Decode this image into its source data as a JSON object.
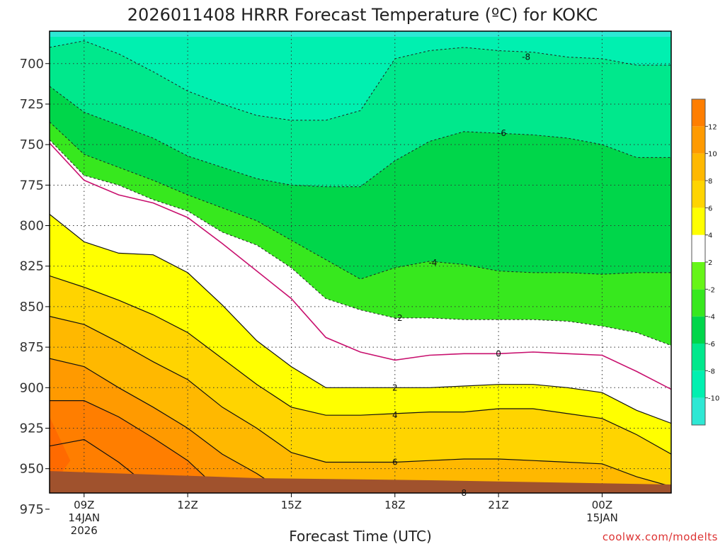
{
  "chart_data": {
    "type": "contour",
    "title": "2026011408 HRRR Forecast Temperature (ºC) for KOKC",
    "xlabel": "Forecast Time (UTC)",
    "ylabel": "",
    "credit": "coolwx.com/modelts",
    "y_scale": "pressure (hPa, increasing downward)",
    "ylim": [
      965,
      680
    ],
    "y_ticks": [
      700,
      725,
      750,
      775,
      800,
      825,
      850,
      875,
      900,
      925,
      950,
      975
    ],
    "x_hours": [
      8,
      26
    ],
    "x_ticks": [
      {
        "hour": 9,
        "lines": [
          "09Z",
          "14JAN",
          "2026"
        ]
      },
      {
        "hour": 12,
        "lines": [
          "12Z"
        ]
      },
      {
        "hour": 15,
        "lines": [
          "15Z"
        ]
      },
      {
        "hour": 18,
        "lines": [
          "18Z"
        ]
      },
      {
        "hour": 21,
        "lines": [
          "21Z"
        ]
      },
      {
        "hour": 24,
        "lines": [
          "00Z",
          "15JAN"
        ]
      }
    ],
    "grid": true,
    "colorbar": {
      "position": "right",
      "levels": [
        -12,
        -10,
        -8,
        -6,
        -4,
        -2,
        2,
        4,
        6,
        8,
        10,
        12,
        14
      ],
      "labels": [
        "-10",
        "-8",
        "-6",
        "-4",
        "-2",
        "2",
        "4",
        "6",
        "8",
        "10",
        "12"
      ],
      "colors": [
        "#2ee8d4",
        "#00f0b0",
        "#00e88c",
        "#00d64a",
        "#37e81e",
        "#66f518",
        "#ffffff",
        "#ffff00",
        "#ffd400",
        "#ffb800",
        "#ff9a00",
        "#ff7e00"
      ]
    },
    "ground_color": "#a0522d",
    "field_columns": [
      {
        "hour": 8,
        "isotherm_levels": {
          "-8": 690,
          "-6": 714,
          "-4": 736,
          "-2": 747,
          "0": 749,
          "2": 793,
          "4": 831,
          "6": 856,
          "8": 882,
          "10": 908,
          "12": 936,
          "14": 963
        }
      },
      {
        "hour": 9,
        "isotherm_levels": {
          "-8": 686,
          "-6": 730,
          "-4": 756,
          "-2": 769,
          "0": 772,
          "2": 810,
          "4": 838,
          "6": 861,
          "8": 887,
          "10": 908,
          "12": 932,
          "14": 990
        }
      },
      {
        "hour": 10,
        "isotherm_levels": {
          "-8": 694,
          "-6": 738,
          "-4": 764,
          "-2": 775,
          "0": 781,
          "2": 817,
          "4": 846,
          "6": 872,
          "8": 900,
          "10": 918,
          "12": 946,
          "14": 990
        }
      },
      {
        "hour": 11,
        "isotherm_levels": {
          "-8": 705,
          "-6": 746,
          "-4": 772,
          "-2": 784,
          "0": 786,
          "2": 818,
          "4": 855,
          "6": 884,
          "8": 912,
          "10": 931,
          "12": 963,
          "14": 990
        }
      },
      {
        "hour": 12,
        "isotherm_levels": {
          "-8": 717,
          "-6": 757,
          "-4": 781,
          "-2": 791,
          "0": 795,
          "2": 829,
          "4": 866,
          "6": 895,
          "8": 925,
          "10": 945,
          "12": 990,
          "14": 990
        }
      },
      {
        "hour": 13,
        "isotherm_levels": {
          "-8": 725,
          "-6": 764,
          "-4": 789,
          "-2": 804,
          "0": 811,
          "2": 849,
          "4": 882,
          "6": 912,
          "8": 941,
          "10": 965,
          "12": 990,
          "14": 990
        }
      },
      {
        "hour": 14,
        "isotherm_levels": {
          "-8": 732,
          "-6": 771,
          "-4": 797,
          "-2": 812,
          "0": 828,
          "2": 871,
          "4": 898,
          "6": 925,
          "8": 953,
          "10": 990,
          "12": 990,
          "14": 990
        }
      },
      {
        "hour": 15,
        "isotherm_levels": {
          "-8": 735,
          "-6": 775,
          "-4": 809,
          "-2": 826,
          "0": 845,
          "2": 887,
          "4": 912,
          "6": 940,
          "8": 967,
          "10": 990,
          "12": 990,
          "14": 990
        }
      },
      {
        "hour": 16,
        "isotherm_levels": {
          "-8": 735,
          "-6": 776,
          "-4": 821,
          "-2": 845,
          "0": 869,
          "2": 900,
          "4": 917,
          "6": 946,
          "8": 968,
          "10": 990,
          "12": 990,
          "14": 990
        }
      },
      {
        "hour": 17,
        "isotherm_levels": {
          "-8": 729,
          "-6": 776,
          "-4": 833,
          "-2": 852,
          "0": 878,
          "2": 900,
          "4": 917,
          "6": 946,
          "8": 968,
          "10": 990,
          "12": 990,
          "14": 990
        }
      },
      {
        "hour": 18,
        "isotherm_levels": {
          "-8": 697,
          "-6": 760,
          "-4": 826,
          "-2": 857,
          "0": 883,
          "2": 900,
          "4": 916,
          "6": 946,
          "8": 967,
          "10": 990,
          "12": 990,
          "14": 990
        }
      },
      {
        "hour": 19,
        "isotherm_levels": {
          "-8": 692,
          "-6": 748,
          "-4": 822,
          "-2": 857,
          "0": 880,
          "2": 900,
          "4": 915,
          "6": 945,
          "8": 966,
          "10": 990,
          "12": 990,
          "14": 990
        }
      },
      {
        "hour": 20,
        "isotherm_levels": {
          "-8": 690,
          "-6": 742,
          "-4": 824,
          "-2": 858,
          "0": 879,
          "2": 899,
          "4": 915,
          "6": 944,
          "8": 965,
          "10": 990,
          "12": 990,
          "14": 990
        }
      },
      {
        "hour": 21,
        "isotherm_levels": {
          "-8": 692,
          "-6": 743,
          "-4": 828,
          "-2": 858,
          "0": 879,
          "2": 898,
          "4": 913,
          "6": 944,
          "8": 967,
          "10": 990,
          "12": 990,
          "14": 990
        }
      },
      {
        "hour": 22,
        "isotherm_levels": {
          "-8": 693,
          "-6": 744,
          "-4": 829,
          "-2": 858,
          "0": 878,
          "2": 898,
          "4": 913,
          "6": 945,
          "8": 968,
          "10": 990,
          "12": 990,
          "14": 990
        }
      },
      {
        "hour": 23,
        "isotherm_levels": {
          "-8": 696,
          "-6": 746,
          "-4": 829,
          "-2": 859,
          "0": 879,
          "2": 900,
          "4": 916,
          "6": 946,
          "8": 970,
          "10": 990,
          "12": 990,
          "14": 990
        }
      },
      {
        "hour": 24,
        "isotherm_levels": {
          "-8": 697,
          "-6": 750,
          "-4": 830,
          "-2": 862,
          "0": 880,
          "2": 903,
          "4": 919,
          "6": 947,
          "8": 975,
          "10": 990,
          "12": 990,
          "14": 990
        }
      },
      {
        "hour": 25,
        "isotherm_levels": {
          "-8": 701,
          "-6": 758,
          "-4": 829,
          "-2": 866,
          "0": 890,
          "2": 914,
          "4": 929,
          "6": 955,
          "8": 990,
          "10": 990,
          "12": 990,
          "14": 990
        }
      },
      {
        "hour": 26,
        "isotherm_levels": {
          "-8": 701,
          "-6": 758,
          "-4": 829,
          "-2": 874,
          "0": 901,
          "2": 922,
          "4": 941,
          "6": 961,
          "8": 990,
          "10": 990,
          "12": 990,
          "14": 990
        }
      }
    ],
    "contour_labels": [
      {
        "text": "-8",
        "hour": 21.8,
        "p": 696
      },
      {
        "text": "-6",
        "hour": 21.1,
        "p": 743
      },
      {
        "text": "-4",
        "hour": 19.1,
        "p": 823
      },
      {
        "text": "-2",
        "hour": 18.1,
        "p": 857
      },
      {
        "text": "0",
        "hour": 21.0,
        "p": 879
      },
      {
        "text": "2",
        "hour": 18.0,
        "p": 900
      },
      {
        "text": "4",
        "hour": 18.0,
        "p": 917
      },
      {
        "text": "6",
        "hour": 18.0,
        "p": 946
      },
      {
        "text": "8",
        "hour": 20.0,
        "p": 965
      }
    ]
  }
}
